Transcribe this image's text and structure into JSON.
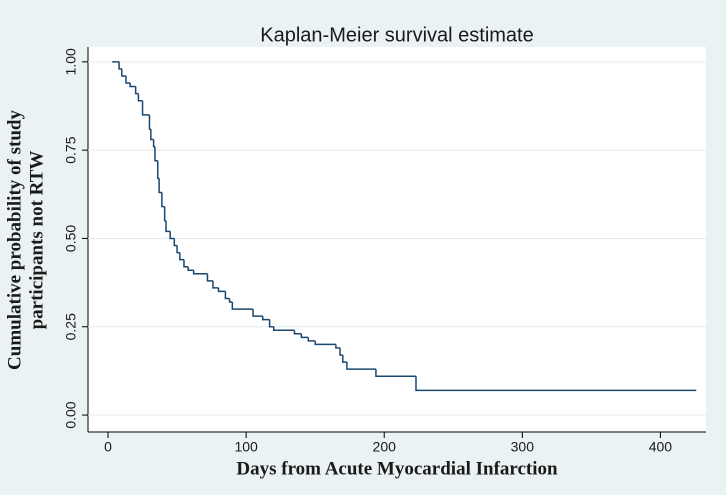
{
  "chart_data": {
    "type": "step",
    "title": "Kaplan-Meier survival estimate",
    "xlabel": "Days from Acute Myocardial Infarction",
    "ylabel": [
      "Cumulative probability of study",
      "participants not RTW"
    ],
    "x": [
      3,
      8,
      10,
      13,
      16,
      20,
      22,
      25,
      30,
      31,
      33,
      34,
      36,
      37,
      39,
      41,
      42,
      45,
      48,
      50,
      52,
      55,
      58,
      62,
      72,
      76,
      80,
      85,
      88,
      90,
      105,
      112,
      117,
      120,
      135,
      140,
      145,
      150,
      165,
      168,
      170,
      173,
      194,
      223,
      426
    ],
    "series": [
      {
        "name": "survival",
        "color": "#1a476f",
        "values": [
          1.0,
          0.98,
          0.96,
          0.94,
          0.93,
          0.91,
          0.89,
          0.85,
          0.81,
          0.78,
          0.76,
          0.72,
          0.67,
          0.63,
          0.59,
          0.55,
          0.52,
          0.5,
          0.48,
          0.46,
          0.44,
          0.42,
          0.41,
          0.4,
          0.38,
          0.36,
          0.35,
          0.33,
          0.32,
          0.3,
          0.28,
          0.27,
          0.25,
          0.24,
          0.23,
          0.22,
          0.21,
          0.2,
          0.19,
          0.17,
          0.15,
          0.13,
          0.11,
          0.07,
          0.07
        ]
      }
    ],
    "xlim": [
      -14.5,
      433
    ],
    "ylim": [
      -0.048,
      1.042
    ],
    "xticks": [
      0,
      100,
      200,
      300,
      400
    ],
    "yticks": [
      {
        "value": 0,
        "label": "0.00"
      },
      {
        "value": 0.25,
        "label": "0.25"
      },
      {
        "value": 0.5,
        "label": "0.50"
      },
      {
        "value": 0.75,
        "label": "0.75"
      },
      {
        "value": 1,
        "label": "1.00"
      }
    ],
    "grid": true
  }
}
